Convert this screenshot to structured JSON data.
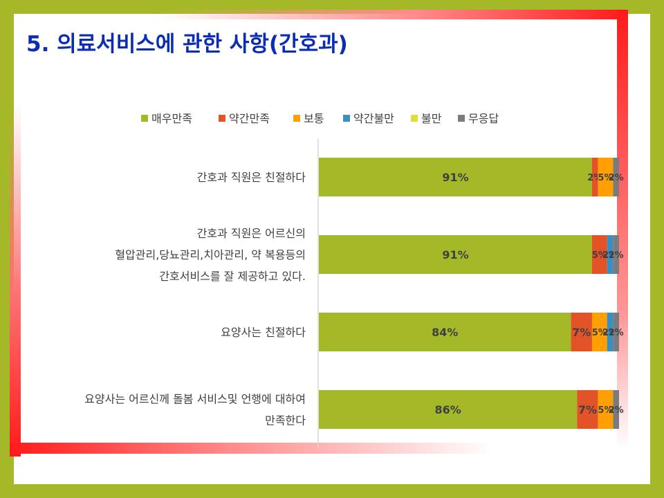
{
  "slide": {
    "title": "5. 의료서비스에 관한 사항(간호과)"
  },
  "colors": {
    "매우만족": "#a5b928",
    "약간만족": "#e35328",
    "보통": "#ffa000",
    "약간불만": "#3b8fc0",
    "불만": "#dede3a",
    "무응답": "#7b7b7b"
  },
  "chart_data": {
    "type": "bar",
    "orientation": "horizontal",
    "stacked": "percent",
    "title": "",
    "legend_position": "top",
    "categories": [
      [
        "간호과 직원은 친절하다"
      ],
      [
        "간호과 직원은 어르신의",
        "혈압관리,당뇨관리,치아관리, 약 복용등의",
        "간호서비스를 잘 제공하고 있다."
      ],
      [
        "요양사는 친절하다"
      ],
      [
        "요양사는 어르신께 돌봄 서비스및 언행에 대하여",
        "만족한다"
      ]
    ],
    "series": [
      {
        "name": "매우만족",
        "values": [
          91,
          91,
          84,
          86
        ]
      },
      {
        "name": "약간만족",
        "values": [
          2,
          5,
          7,
          7
        ]
      },
      {
        "name": "보통",
        "values": [
          5,
          0,
          5,
          5
        ]
      },
      {
        "name": "약간불만",
        "values": [
          0,
          2,
          2,
          0
        ]
      },
      {
        "name": "불만",
        "values": [
          0,
          0,
          0,
          0
        ]
      },
      {
        "name": "무응답",
        "values": [
          2,
          2,
          2,
          2
        ]
      }
    ]
  }
}
